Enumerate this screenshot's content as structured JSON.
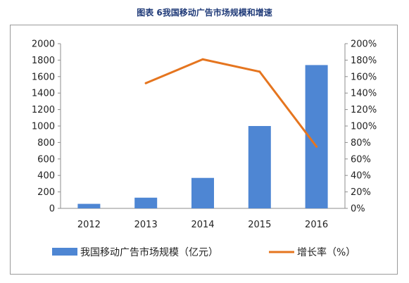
{
  "chart_data": {
    "type": "bar",
    "title": "图表 6我国移动广告市场规模和增速",
    "categories": [
      "2012",
      "2013",
      "2014",
      "2015",
      "2016"
    ],
    "series": [
      {
        "name": "我国移动广告市场规模（亿元）",
        "type": "bar",
        "axis": "left",
        "color": "#4e86d3",
        "values": [
          55,
          130,
          370,
          1000,
          1740
        ]
      },
      {
        "name": "增长率（%）",
        "type": "line",
        "axis": "right",
        "color": "#e5751f",
        "values": [
          null,
          152,
          181,
          166,
          75
        ]
      }
    ],
    "y_left": {
      "min": 0,
      "max": 2000,
      "ticks": [
        "0",
        "200",
        "400",
        "600",
        "800",
        "1000",
        "1200",
        "1400",
        "1600",
        "1800",
        "2000"
      ]
    },
    "y_right": {
      "min": 0,
      "max": 200,
      "ticks": [
        "0%",
        "20%",
        "40%",
        "60%",
        "80%",
        "100%",
        "120%",
        "140%",
        "160%",
        "180%",
        "200%"
      ]
    },
    "grid": false,
    "legend": "bottom"
  }
}
